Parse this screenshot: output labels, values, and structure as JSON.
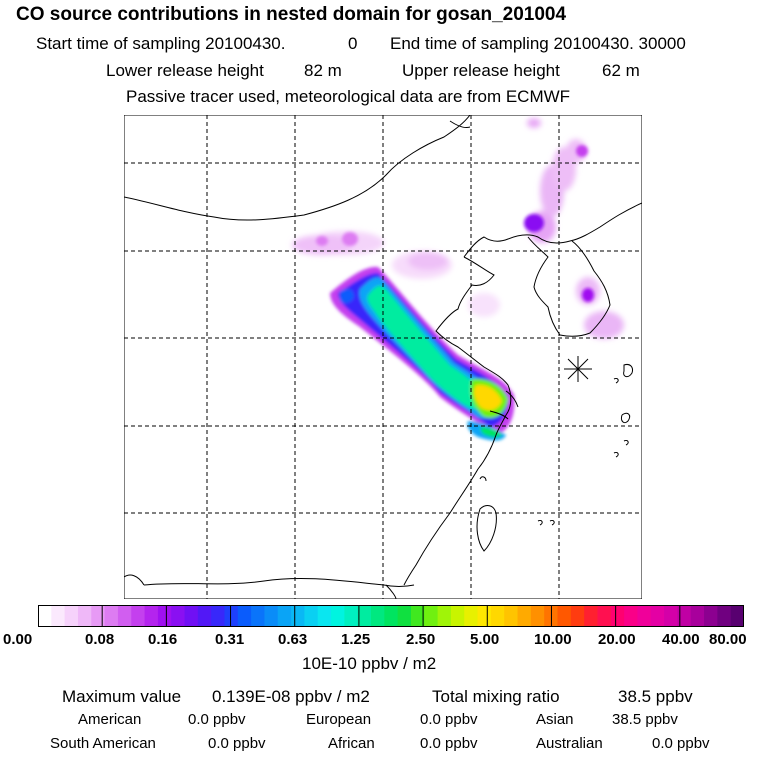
{
  "header": {
    "title": "CO  source contributions in nested domain for gosan_201004",
    "start_label": "Start time of sampling 20100430.",
    "start_hour": "0",
    "end_label": "End time of sampling 20100430. 30000",
    "lower_label": "Lower release height",
    "lower_value": "82 m",
    "upper_label": "Upper release height",
    "upper_value": "62 m",
    "tracer_note": "Passive tracer used, meteorological data are from ECMWF"
  },
  "colorbar": {
    "labels": [
      "0.00",
      "0.08",
      "0.16",
      "0.31",
      "0.63",
      "1.25",
      "2.50",
      "5.00",
      "10.00",
      "20.00",
      "40.00",
      "80.00"
    ],
    "unit": "10E-10 ppbv / m2",
    "colors": [
      "#ffffff",
      "#fbe9fd",
      "#f6d2fb",
      "#efb8f8",
      "#e79af5",
      "#dd7cf2",
      "#d15ef0",
      "#c440ee",
      "#b424ee",
      "#a010f0",
      "#8a10f2",
      "#7010f4",
      "#5218f6",
      "#3828fa",
      "#1e40fc",
      "#0a5cfc",
      "#0a74fa",
      "#0a8cf8",
      "#0aa4f6",
      "#0ab8f4",
      "#0ad0f2",
      "#0ae6f0",
      "#00f4e0",
      "#00f0c0",
      "#00eca0",
      "#00e880",
      "#00e460",
      "#10e040",
      "#40e820",
      "#70f010",
      "#a0f408",
      "#c8f400",
      "#e8f000",
      "#ffe800",
      "#ffd800",
      "#ffc400",
      "#ffaa00",
      "#ff9000",
      "#ff7400",
      "#ff5800",
      "#ff3c10",
      "#ff2030",
      "#ff1050",
      "#ff0070",
      "#fa0088",
      "#f0009a",
      "#e400a4",
      "#d400a8",
      "#c000a4",
      "#a8009c",
      "#8c0090",
      "#700080",
      "#580070"
    ]
  },
  "stats": {
    "max_label": "Maximum value",
    "max_value": "0.139E-08 ppbv / m2",
    "total_label": "Total mixing ratio",
    "total_value": "38.5 ppbv",
    "regions": [
      {
        "name": "American",
        "value": "0.0 ppbv"
      },
      {
        "name": "European",
        "value": "0.0 ppbv"
      },
      {
        "name": "Asian",
        "value": "38.5 ppbv"
      },
      {
        "name": "South American",
        "value": "0.0 ppbv"
      },
      {
        "name": "African",
        "value": "0.0 ppbv"
      },
      {
        "name": "Australian",
        "value": "0.0 ppbv"
      }
    ]
  }
}
